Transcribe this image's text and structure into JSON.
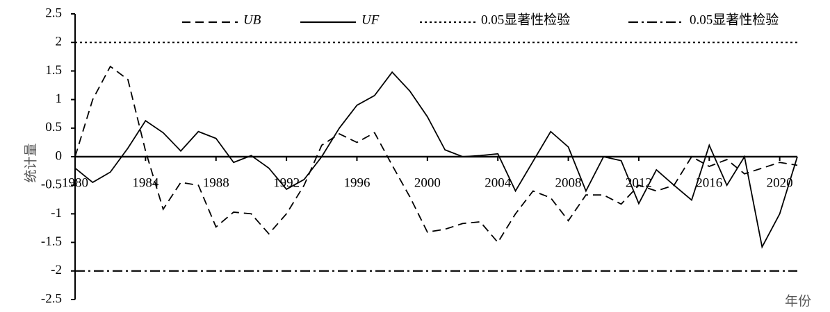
{
  "chart_data": {
    "type": "line",
    "y_label": "统计量",
    "x_label": "年份",
    "x": [
      1980,
      1981,
      1982,
      1983,
      1984,
      1985,
      1986,
      1987,
      1988,
      1989,
      1990,
      1991,
      1992,
      1993,
      1994,
      1995,
      1996,
      1997,
      1998,
      1999,
      2000,
      2001,
      2002,
      2003,
      2004,
      2005,
      2006,
      2007,
      2008,
      2009,
      2010,
      2011,
      2012,
      2013,
      2014,
      2015,
      2016,
      2017,
      2018,
      2019,
      2020,
      2021
    ],
    "series": [
      {
        "name": "UB",
        "color": "#000000",
        "style": "dashed",
        "values": [
          0.0,
          1.0,
          1.58,
          1.35,
          0.1,
          -0.92,
          -0.45,
          -0.5,
          -1.23,
          -0.97,
          -1.0,
          -1.35,
          -1.0,
          -0.5,
          0.2,
          0.4,
          0.25,
          0.42,
          -0.15,
          -0.7,
          -1.32,
          -1.27,
          -1.17,
          -1.14,
          -1.5,
          -1.0,
          -0.6,
          -0.72,
          -1.12,
          -0.67,
          -0.67,
          -0.83,
          -0.5,
          -0.6,
          -0.5,
          0.0,
          -0.17,
          -0.05,
          -0.3,
          -0.2,
          -0.1,
          -0.15
        ]
      },
      {
        "name": "UF",
        "color": "#000000",
        "style": "solid",
        "values": [
          -0.2,
          -0.45,
          -0.27,
          0.15,
          0.63,
          0.42,
          0.1,
          0.44,
          0.32,
          -0.1,
          0.02,
          -0.2,
          -0.57,
          -0.4,
          0.0,
          0.5,
          0.9,
          1.07,
          1.48,
          1.15,
          0.7,
          0.12,
          0.0,
          0.02,
          0.05,
          -0.6,
          -0.08,
          0.44,
          0.17,
          -0.6,
          0.0,
          -0.07,
          -0.82,
          -0.23,
          -0.5,
          -0.76,
          0.2,
          -0.5,
          0.0,
          -1.58,
          -1.0,
          0.0
        ]
      }
    ],
    "reference_lines": [
      {
        "name": "0.05显著性检验",
        "value": 2,
        "style": "dotted",
        "color": "#000000"
      },
      {
        "name": "0.05显著性检验",
        "value": -2,
        "style": "dashdot",
        "color": "#000000"
      }
    ],
    "xlim": [
      1980,
      2021
    ],
    "xticks": [
      1980,
      1984,
      1988,
      1992,
      1996,
      2000,
      2004,
      2008,
      2012,
      2016,
      2020
    ],
    "ylim": [
      -2.5,
      2.5
    ],
    "yticks": [
      2.5,
      2,
      1.5,
      1,
      0.5,
      0,
      -0.5,
      -1,
      -1.5,
      -2,
      -2.5
    ]
  }
}
